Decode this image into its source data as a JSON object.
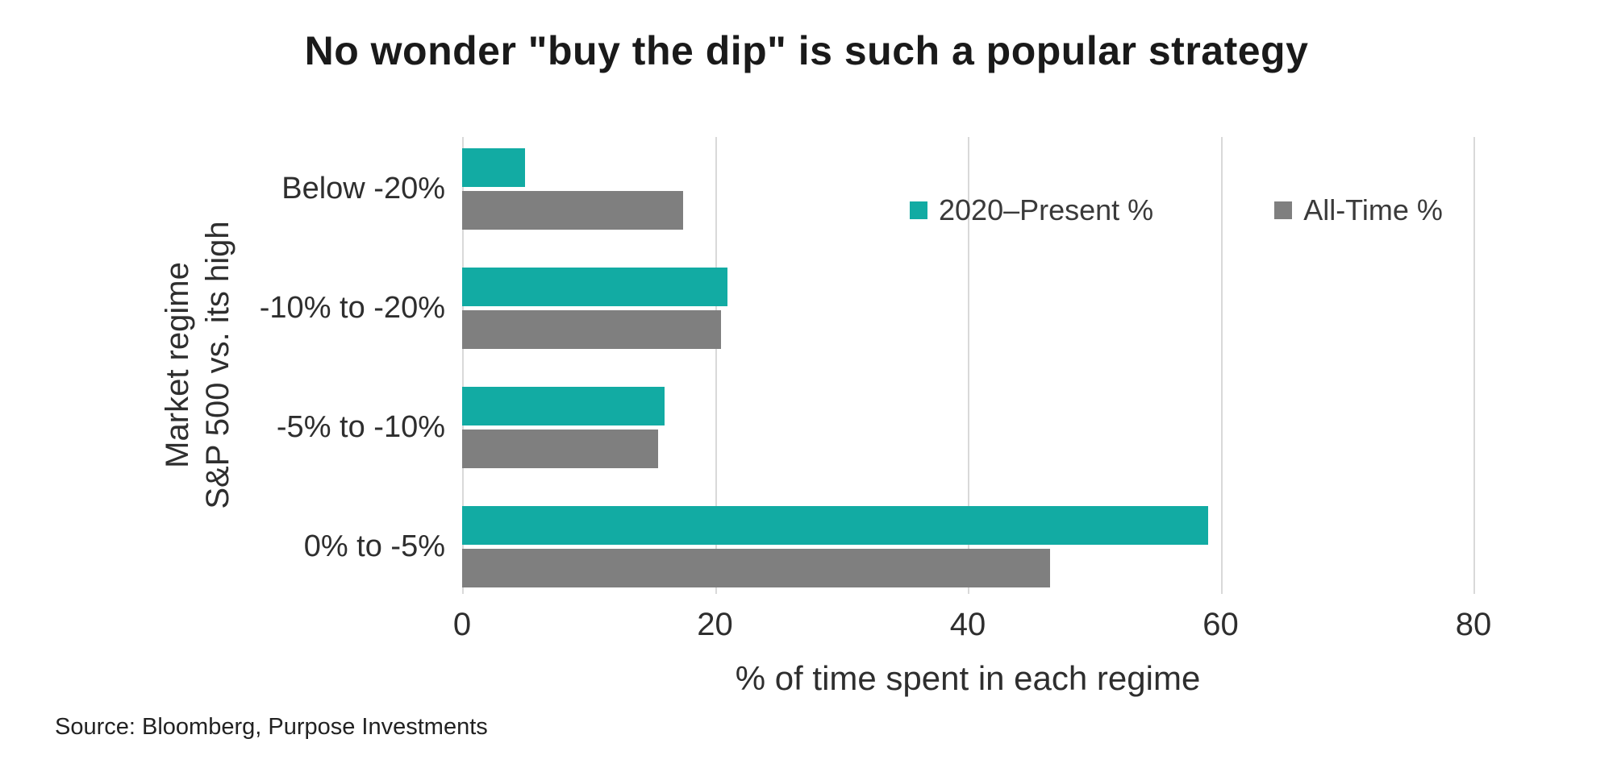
{
  "title": "No wonder \"buy the dip\" is such a popular strategy",
  "source": "Source: Bloomberg, Purpose Investments",
  "chart_data": {
    "type": "bar",
    "orientation": "horizontal",
    "title": "No wonder \"buy the dip\" is such a popular strategy",
    "categories": [
      "Below -20%",
      "-10% to -20%",
      "-5% to -10%",
      "0% to -5%"
    ],
    "series": [
      {
        "name": "2020–Present %",
        "color": "#12aba3",
        "values": [
          5,
          21,
          16,
          59
        ]
      },
      {
        "name": "All-Time %",
        "color": "#7f7f7f",
        "values": [
          17.5,
          20.5,
          15.5,
          46.5
        ]
      }
    ],
    "xlabel": "% of time spent in each regime",
    "ylabel_lines": [
      "Market regime",
      "S&P 500 vs. its high"
    ],
    "xlim": [
      0,
      80
    ],
    "xticks": [
      0,
      20,
      40,
      60,
      80
    ],
    "grid": true,
    "gridline_color": "#d9d9d9",
    "legend_position": "top-right-inside"
  }
}
